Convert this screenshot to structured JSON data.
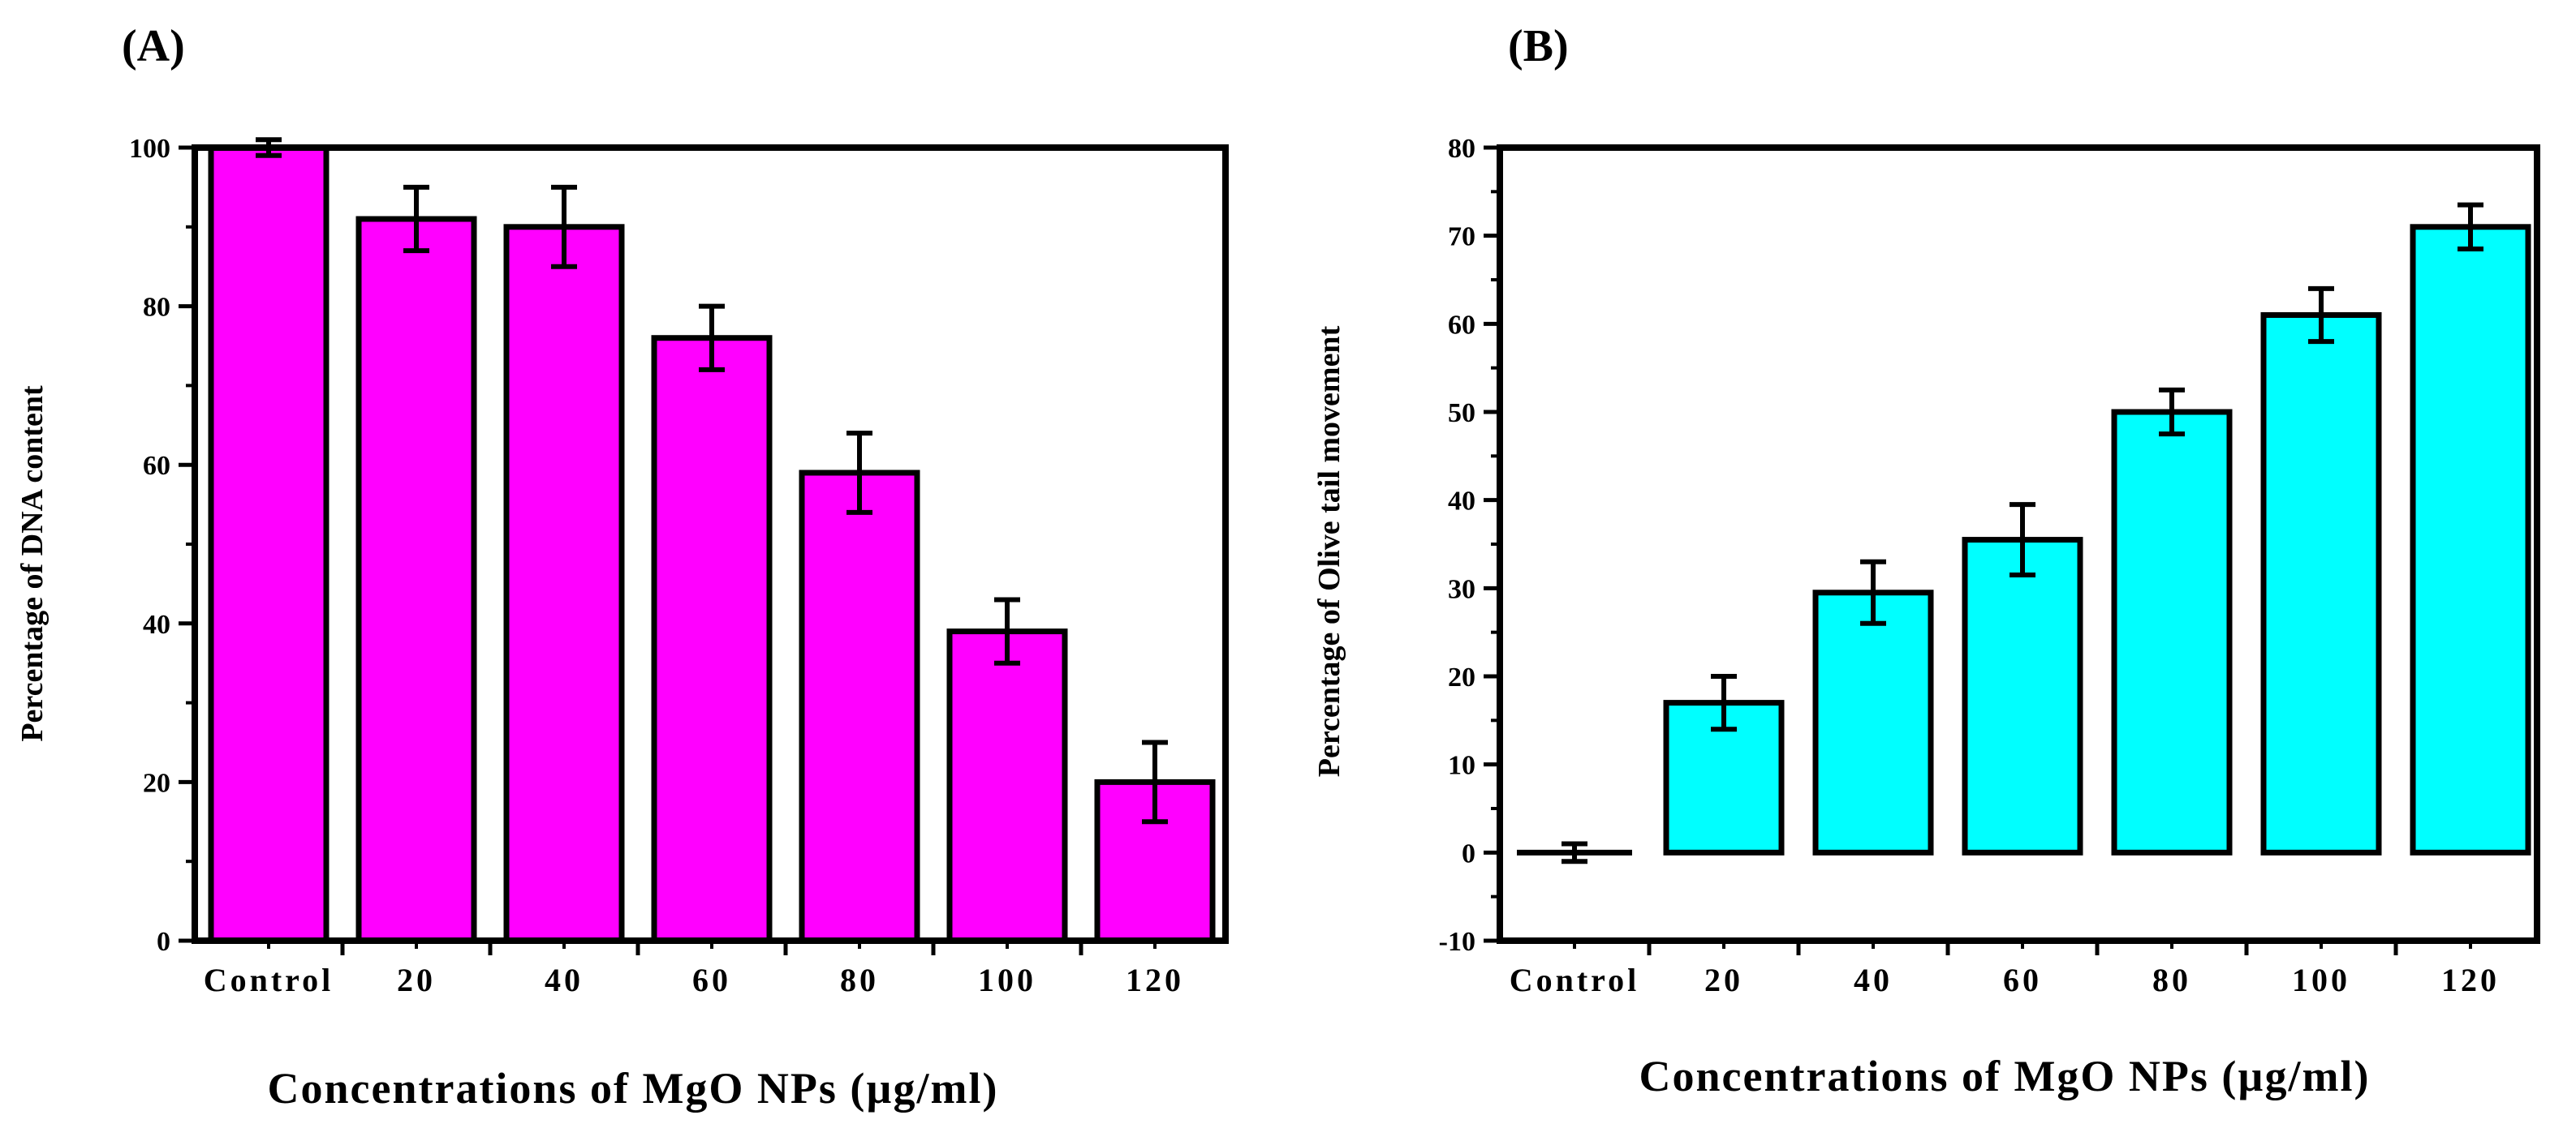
{
  "chart_data": [
    {
      "type": "bar",
      "panel_label": "(A)",
      "title": "",
      "xlabel": "Concentrations  of MgO  NPs (µg/ml)",
      "ylabel": "Percentage of DNA content",
      "categories": [
        "Control",
        "20",
        "40",
        "60",
        "80",
        "100",
        "120"
      ],
      "values": [
        100,
        91,
        90,
        76,
        59,
        39,
        20
      ],
      "errors": [
        1,
        4,
        5,
        4,
        5,
        4,
        5
      ],
      "ylim": [
        0,
        100
      ],
      "yticks": [
        0,
        20,
        40,
        60,
        80,
        100
      ],
      "bar_color": "#ff00ff",
      "grid": false,
      "legend": "none"
    },
    {
      "type": "bar",
      "panel_label": "(B)",
      "title": "",
      "xlabel": "Concentrations  of MgO  NPs (µg/ml)",
      "ylabel": "Percentage of Olive tail movement",
      "categories": [
        "Control",
        "20",
        "40",
        "60",
        "80",
        "100",
        "120"
      ],
      "values": [
        0,
        17,
        29.5,
        35.5,
        50,
        61,
        71
      ],
      "errors": [
        1,
        3,
        3.5,
        4,
        2.5,
        3,
        2.5
      ],
      "ylim": [
        -10,
        80
      ],
      "yticks": [
        -10,
        0,
        10,
        20,
        30,
        40,
        50,
        60,
        70,
        80
      ],
      "bar_color": "#00ffff",
      "grid": false,
      "legend": "none"
    }
  ]
}
